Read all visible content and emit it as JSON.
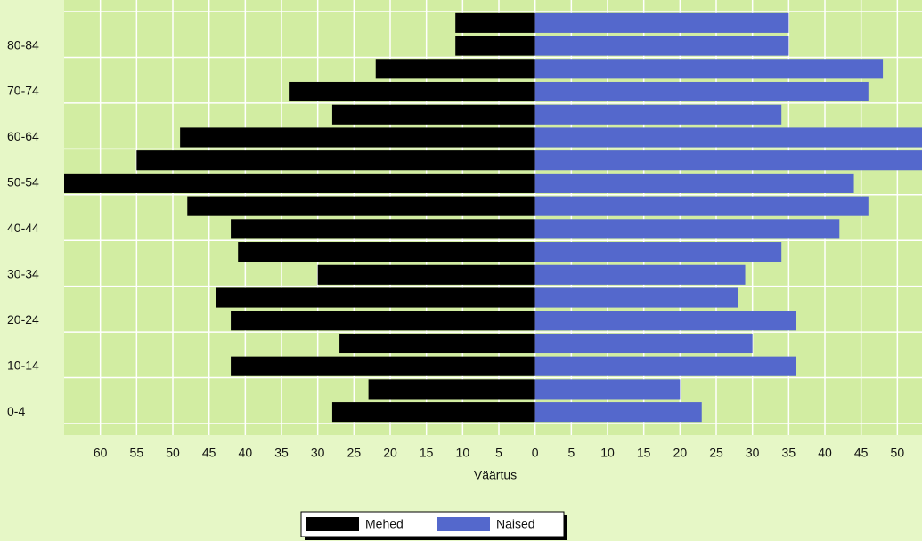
{
  "chart_data": {
    "type": "bar",
    "orientation": "horizontal",
    "categories": [
      "0-4",
      null,
      "10-14",
      null,
      "20-24",
      null,
      "30-34",
      null,
      "40-44",
      null,
      "50-54",
      null,
      "60-64",
      null,
      "70-74",
      null,
      "80-84",
      null
    ],
    "series": [
      {
        "name": "Mehed",
        "color": "#000000",
        "values": [
          -28,
          -23,
          -42,
          -27,
          -42,
          -44,
          -30,
          -41,
          -42,
          -48,
          -65,
          -55,
          -49,
          -28,
          -34,
          -22,
          -11,
          -11
        ]
      },
      {
        "name": "Naised",
        "color": "#5468cc",
        "values": [
          23,
          20,
          36,
          30,
          36,
          28,
          29,
          34,
          42,
          46,
          44,
          54,
          54,
          34,
          46,
          48,
          35,
          35
        ]
      }
    ],
    "xlabel": "Väärtus",
    "xlim": [
      -65,
      53.4
    ],
    "xticks": [
      {
        "value": -60,
        "label": "60"
      },
      {
        "value": -55,
        "label": "55"
      },
      {
        "value": -50,
        "label": "50"
      },
      {
        "value": -45,
        "label": "45"
      },
      {
        "value": -40,
        "label": "40"
      },
      {
        "value": -35,
        "label": "35"
      },
      {
        "value": -30,
        "label": "30"
      },
      {
        "value": -25,
        "label": "25"
      },
      {
        "value": -20,
        "label": "20"
      },
      {
        "value": -15,
        "label": "15"
      },
      {
        "value": -10,
        "label": "10"
      },
      {
        "value": -5,
        "label": "5"
      },
      0,
      5,
      10,
      15,
      20,
      25,
      30,
      35,
      40,
      45,
      50
    ],
    "grid": true,
    "legend": "bottom"
  }
}
